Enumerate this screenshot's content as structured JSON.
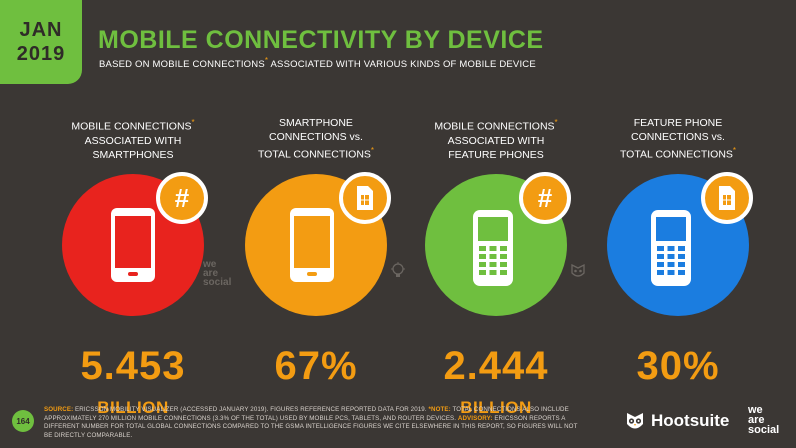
{
  "badge": {
    "month": "JAN",
    "year": "2019"
  },
  "header": {
    "title": "MOBILE CONNECTIVITY BY DEVICE",
    "subtitle_pre": "BASED ON MOBILE CONNECTIONS",
    "subtitle_ast": "*",
    "subtitle_post": " ASSOCIATED WITH VARIOUS KINDS OF MOBILE DEVICE"
  },
  "columns": [
    {
      "label_lines": [
        "MOBILE CONNECTIONS",
        "ASSOCIATED WITH",
        "SMARTPHONES"
      ],
      "ast_line": 0,
      "value": "5.453",
      "unit": "BILLION",
      "color": "#e8231e",
      "icon": "smartphone-icon",
      "badge_icon": "hash-icon",
      "badge_text": "#"
    },
    {
      "label_lines": [
        "SMARTPHONE",
        "CONNECTIONS vs.",
        "TOTAL CONNECTIONS"
      ],
      "ast_line": 2,
      "value": "67%",
      "unit": "",
      "color": "#f39c12",
      "icon": "smartphone-icon",
      "badge_icon": "sim-card-icon",
      "badge_text": ""
    },
    {
      "label_lines": [
        "MOBILE CONNECTIONS",
        "ASSOCIATED WITH",
        "FEATURE PHONES"
      ],
      "ast_line": 0,
      "value": "2.444",
      "unit": "BILLION",
      "color": "#6fbf3f",
      "icon": "feature-phone-icon",
      "badge_icon": "hash-icon",
      "badge_text": "#"
    },
    {
      "label_lines": [
        "FEATURE PHONE",
        "CONNECTIONS vs.",
        "TOTAL CONNECTIONS"
      ],
      "ast_line": 2,
      "value": "30%",
      "unit": "",
      "color": "#1b7de0",
      "icon": "feature-phone-icon",
      "badge_icon": "sim-card-icon",
      "badge_text": ""
    }
  ],
  "watermark": {
    "line1": "we",
    "line2": "are",
    "line3": "social"
  },
  "footer": {
    "page": "164",
    "source_label": "SOURCE:",
    "source_text": " ERICSSON MOBILITY VISUALIZER (ACCESSED JANUARY 2019). FIGURES REFERENCE REPORTED DATA FOR 2019. ",
    "note_label": "*NOTE:",
    "note_text": " TOTAL CONNECTIONS ALSO INCLUDE APPROXIMATELY 270 MILLION MOBILE CONNECTIONS (3.3% OF THE TOTAL) USED BY MOBILE PCS, TABLETS, AND ROUTER DEVICES. ",
    "advisory_label": "ADVISORY:",
    "advisory_text": " ERICSSON REPORTS A DIFFERENT NUMBER FOR TOTAL GLOBAL CONNECTIONS COMPARED TO THE GSMA INTELLIGENCE FIGURES WE CITE ELSEWHERE IN THIS REPORT, SO FIGURES WILL NOT BE DIRECTLY COMPARABLE."
  },
  "brand": {
    "hootsuite": "Hootsuite",
    "was_1": "we",
    "was_2": "are",
    "was_3": "social"
  },
  "colors": {
    "accent_green": "#6fbf3f",
    "accent_orange": "#f39c12",
    "background": "#3b3734"
  }
}
